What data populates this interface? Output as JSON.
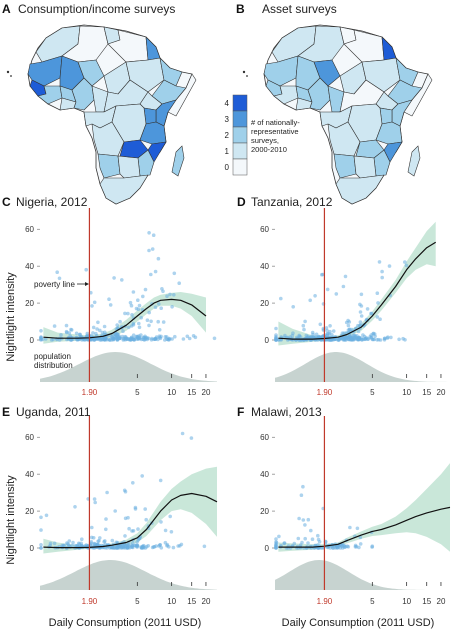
{
  "colors": {
    "map_0": "#f4f8fb",
    "map_1": "#cfe7f2",
    "map_2": "#9fd0ea",
    "map_3": "#4d96db",
    "map_4": "#1e5cd6",
    "points": "#6aaee0",
    "ci": "#bfe3d2",
    "density": "#c7d3d0",
    "poverty": "#c0392b",
    "curve": "#111111"
  },
  "maps": [
    {
      "label": "A",
      "title": "Consumption/income surveys"
    },
    {
      "label": "B",
      "title": "Asset surveys"
    }
  ],
  "map_legend": {
    "levels": [
      "0",
      "1",
      "2",
      "3",
      "4"
    ],
    "lines": [
      "# of nationally-",
      "representative",
      "surveys,",
      "2000-2010"
    ]
  },
  "shared": {
    "ylabel": "Nightlight intensity",
    "xlabel": "Daily Consumption (2011 USD)",
    "poverty_tick": "1.90",
    "x_ticks": [
      "5",
      "10",
      "15",
      "20"
    ],
    "y_ticks": [
      "0",
      "20",
      "40",
      "60"
    ]
  },
  "annotations": {
    "poverty_line": "poverty line",
    "population": "population",
    "distribution": "distribution"
  },
  "chart_data": [
    {
      "label": "C",
      "title": "Nigeria, 2012",
      "type": "scatter",
      "x_scale": "log",
      "xlim": [
        0.7,
        25
      ],
      "ylim": [
        0,
        65
      ],
      "poverty_line": 1.9,
      "trend": {
        "x": [
          0.75,
          1,
          1.5,
          1.9,
          2.5,
          3,
          4,
          5,
          6,
          7,
          8,
          10,
          12,
          15,
          20
        ],
        "y": [
          1.5,
          1,
          1,
          1.2,
          2,
          3.5,
          8,
          13,
          17,
          20,
          21.5,
          22,
          21.5,
          19,
          13
        ]
      },
      "ci": {
        "x": [
          0.75,
          1,
          1.5,
          1.9,
          2.5,
          3,
          4,
          5,
          6,
          7,
          8,
          10,
          12,
          15,
          20
        ],
        "lo": [
          -2,
          -1,
          -0.5,
          0,
          0.5,
          1.5,
          5,
          10,
          14,
          17,
          18.5,
          18.5,
          17,
          13,
          4
        ],
        "hi": [
          7,
          4,
          3,
          2.5,
          3.5,
          5.5,
          11,
          16,
          20,
          23,
          24.5,
          25.5,
          26,
          25,
          23
        ]
      },
      "points": {
        "n": 320,
        "seed": 11,
        "max_y": 62
      },
      "density": {
        "mu": 3.2,
        "sigma": 0.72
      }
    },
    {
      "label": "D",
      "title": "Tanzania, 2012",
      "type": "scatter",
      "x_scale": "log",
      "xlim": [
        0.7,
        25
      ],
      "ylim": [
        0,
        65
      ],
      "poverty_line": 1.9,
      "trend": {
        "x": [
          0.75,
          1,
          1.5,
          1.9,
          2.5,
          3,
          4,
          5,
          6,
          8,
          10,
          12,
          15,
          18
        ],
        "y": [
          1,
          0.5,
          0.5,
          0.8,
          1.5,
          3,
          7,
          13,
          19,
          29,
          38,
          44,
          50,
          53
        ]
      },
      "ci": {
        "x": [
          0.75,
          1,
          1.5,
          1.9,
          2.5,
          3,
          4,
          5,
          6,
          8,
          10,
          12,
          15,
          18
        ],
        "lo": [
          -3,
          -2,
          -1,
          -0.5,
          0.5,
          1.5,
          5,
          10.5,
          16,
          25.5,
          33.5,
          38,
          41,
          40
        ],
        "hi": [
          10,
          6,
          2.5,
          2,
          2.5,
          4.5,
          9,
          15.5,
          22,
          32.5,
          42.5,
          50,
          59,
          64
        ]
      },
      "points": {
        "n": 320,
        "seed": 23,
        "max_y": 62
      },
      "density": {
        "mu": 2.4,
        "sigma": 0.62
      }
    },
    {
      "label": "E",
      "title": "Uganda, 2011",
      "type": "scatter",
      "x_scale": "log",
      "xlim": [
        0.7,
        25
      ],
      "ylim": [
        0,
        65
      ],
      "poverty_line": 1.9,
      "trend": {
        "x": [
          0.75,
          1,
          1.5,
          1.9,
          2.5,
          3,
          4,
          5,
          6,
          8,
          10,
          12,
          15,
          20,
          25
        ],
        "y": [
          0.5,
          0.2,
          0.2,
          0.3,
          0.8,
          1.5,
          3,
          5.5,
          10,
          20,
          26,
          28.5,
          29.5,
          28,
          25
        ]
      },
      "ci": {
        "x": [
          0.75,
          1,
          1.5,
          1.9,
          2.5,
          3,
          4,
          5,
          6,
          8,
          10,
          12,
          15,
          20,
          25
        ],
        "lo": [
          -3,
          -2,
          -1,
          -0.5,
          0,
          0.5,
          1.5,
          3,
          6.5,
          15,
          20,
          21,
          19,
          13,
          6
        ],
        "hi": [
          5,
          3,
          1.5,
          1.2,
          1.6,
          2.5,
          4.5,
          8,
          13.5,
          25,
          32,
          36,
          40,
          43,
          44
        ]
      },
      "points": {
        "n": 240,
        "seed": 37,
        "max_y": 62
      },
      "density": {
        "mu": 2.9,
        "sigma": 0.72
      }
    },
    {
      "label": "F",
      "title": "Malawi, 2013",
      "type": "scatter",
      "x_scale": "log",
      "xlim": [
        0.7,
        25
      ],
      "ylim": [
        0,
        65
      ],
      "poverty_line": 1.9,
      "trend": {
        "x": [
          0.75,
          1,
          1.5,
          1.9,
          2.5,
          3,
          4,
          5,
          6,
          8,
          10,
          12,
          15,
          20,
          24
        ],
        "y": [
          0.5,
          0.5,
          0.5,
          1,
          2,
          4,
          7,
          9,
          10,
          12.5,
          15,
          17,
          19,
          21,
          22
        ]
      },
      "ci": {
        "x": [
          0.75,
          1,
          1.5,
          1.9,
          2.5,
          3,
          4,
          5,
          6,
          8,
          10,
          12,
          15,
          20,
          24
        ],
        "lo": [
          -2,
          -1.5,
          -1,
          0,
          1,
          2.5,
          5,
          6.5,
          7,
          8,
          8.5,
          8,
          6,
          2,
          -2
        ],
        "hi": [
          3,
          2.5,
          2,
          2,
          3,
          5.5,
          9,
          11.5,
          13,
          17,
          21.5,
          26,
          32,
          40,
          46
        ]
      },
      "points": {
        "n": 120,
        "seed": 53,
        "max_y": 42
      },
      "density": {
        "mu": 1.7,
        "sigma": 0.6
      }
    }
  ]
}
